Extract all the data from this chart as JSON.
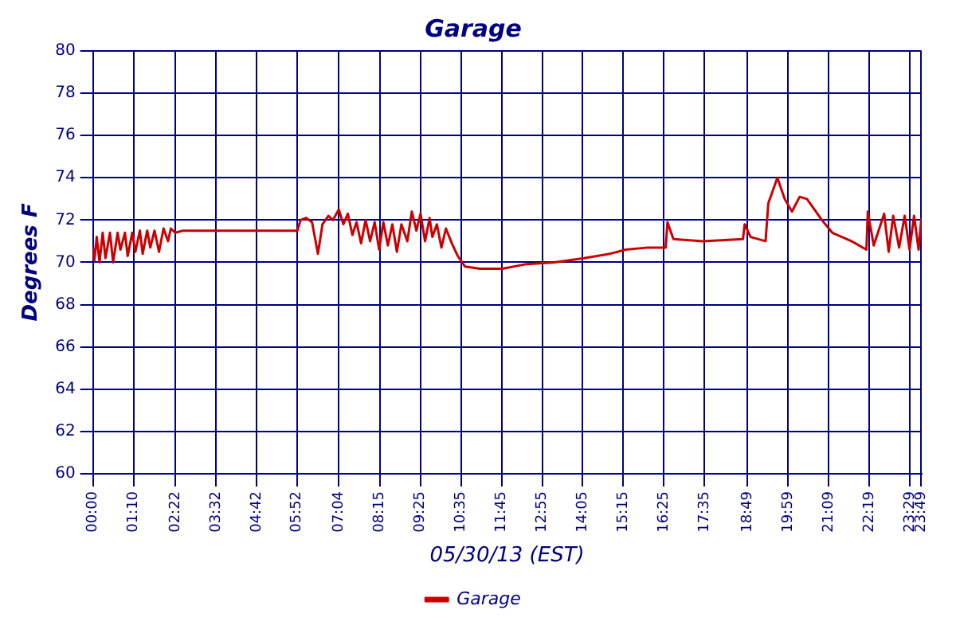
{
  "chart_data": {
    "type": "line",
    "title": "Garage",
    "xlabel": "05/30/13 (EST)",
    "ylabel": "Degrees F",
    "x": [
      0,
      0.04,
      0.11,
      0.19,
      0.28,
      0.36,
      0.49,
      0.58,
      0.71,
      0.79,
      0.92,
      1.0,
      1.13,
      1.22,
      1.35,
      1.43,
      1.56,
      1.65,
      1.77,
      1.9,
      2.03,
      2.16,
      2.24,
      2.37,
      2.59,
      4.72,
      5.88,
      5.97,
      6.13,
      6.3,
      6.47,
      6.6,
      6.77,
      6.9,
      7.07,
      7.2,
      7.33,
      7.46,
      7.58,
      7.71,
      7.84,
      7.97,
      8.1,
      8.23,
      8.35,
      8.48,
      8.61,
      8.74,
      8.87,
      9.04,
      9.17,
      9.3,
      9.42,
      9.55,
      9.68,
      9.76,
      9.89,
      10.02,
      10.15,
      10.32,
      10.49,
      10.7,
      11.13,
      11.77,
      12.41,
      13.27,
      14.12,
      14.85,
      15.32,
      15.96,
      16.47,
      16.52,
      16.69,
      17.54,
      18.69,
      18.74,
      18.91,
      19.34,
      19.42,
      19.68,
      19.89,
      20.1,
      20.32,
      20.53,
      20.96,
      21.26,
      21.81,
      22.24,
      22.28,
      22.45,
      22.75,
      22.88,
      23.01,
      23.18,
      23.34,
      23.48,
      23.61,
      23.74,
      23.82
    ],
    "series": [
      {
        "name": "Garage",
        "color": "#cc0000",
        "values": [
          70.7,
          70.1,
          71.2,
          70.0,
          71.4,
          70.2,
          71.4,
          70.0,
          71.4,
          70.6,
          71.4,
          70.3,
          71.4,
          70.5,
          71.5,
          70.4,
          71.5,
          70.7,
          71.5,
          70.5,
          71.6,
          71.0,
          71.6,
          71.4,
          71.5,
          71.5,
          71.5,
          72.0,
          72.1,
          71.9,
          70.4,
          71.8,
          72.2,
          72.0,
          72.5,
          71.8,
          72.3,
          71.3,
          71.9,
          70.9,
          72.0,
          71.0,
          71.9,
          70.6,
          71.9,
          70.8,
          71.8,
          70.5,
          71.8,
          71.0,
          72.4,
          71.5,
          72.3,
          71.0,
          72.1,
          71.2,
          71.8,
          70.7,
          71.6,
          70.9,
          70.3,
          69.8,
          69.7,
          69.7,
          69.9,
          70.0,
          70.2,
          70.4,
          70.6,
          70.7,
          70.7,
          71.9,
          71.1,
          71.0,
          71.1,
          71.8,
          71.2,
          71.0,
          72.8,
          74.0,
          73.0,
          72.4,
          73.1,
          73.0,
          72.0,
          71.4,
          71.0,
          70.6,
          72.4,
          70.8,
          72.3,
          70.5,
          72.2,
          70.7,
          72.2,
          70.6,
          72.2,
          70.6,
          72.1
        ]
      }
    ],
    "xlim": [
      0,
      23.82
    ],
    "xticks": [
      {
        "value": 0,
        "label": "00:00"
      },
      {
        "value": 1.167,
        "label": "01:10"
      },
      {
        "value": 2.367,
        "label": "02:22"
      },
      {
        "value": 3.533,
        "label": "03:32"
      },
      {
        "value": 4.7,
        "label": "04:42"
      },
      {
        "value": 5.867,
        "label": "05:52"
      },
      {
        "value": 7.067,
        "label": "07:04"
      },
      {
        "value": 8.25,
        "label": "08:15"
      },
      {
        "value": 9.417,
        "label": "09:25"
      },
      {
        "value": 10.583,
        "label": "10:35"
      },
      {
        "value": 11.75,
        "label": "11:45"
      },
      {
        "value": 12.917,
        "label": "12:55"
      },
      {
        "value": 14.083,
        "label": "14:05"
      },
      {
        "value": 15.25,
        "label": "15:15"
      },
      {
        "value": 16.417,
        "label": "16:25"
      },
      {
        "value": 17.583,
        "label": "17:35"
      },
      {
        "value": 18.817,
        "label": "18:49"
      },
      {
        "value": 19.983,
        "label": "19:59"
      },
      {
        "value": 21.15,
        "label": "21:09"
      },
      {
        "value": 22.317,
        "label": "22:19"
      },
      {
        "value": 23.483,
        "label": "23:29"
      },
      {
        "value": 23.817,
        "label": "23:49"
      }
    ],
    "ylim": [
      60,
      80
    ],
    "yticks": [
      60,
      62,
      64,
      66,
      68,
      70,
      72,
      74,
      76,
      78,
      80
    ],
    "grid": true,
    "legend": "bottom",
    "marker": "none",
    "line_style": "solid"
  }
}
